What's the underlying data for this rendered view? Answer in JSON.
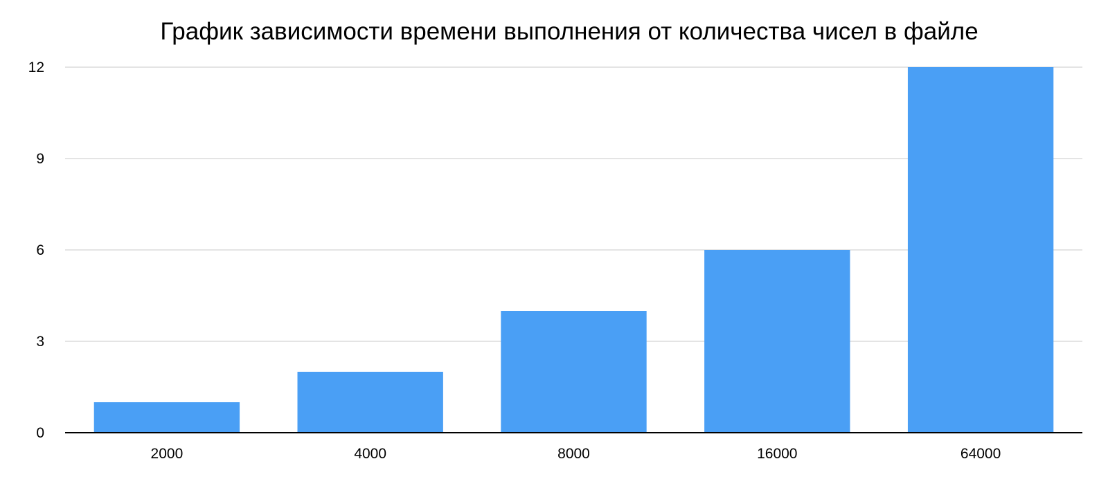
{
  "chart_data": {
    "type": "bar",
    "title": "График зависимости времени выполнения от количества чисел в файле",
    "xlabel": "",
    "ylabel": "",
    "categories": [
      "2000",
      "4000",
      "8000",
      "16000",
      "64000"
    ],
    "values": [
      1,
      2,
      4,
      6,
      12
    ],
    "ylim": [
      0,
      12
    ],
    "yticks": [
      0,
      3,
      6,
      9,
      12
    ],
    "grid": true,
    "legend": "none",
    "bar_color": "#4a9ff5"
  }
}
